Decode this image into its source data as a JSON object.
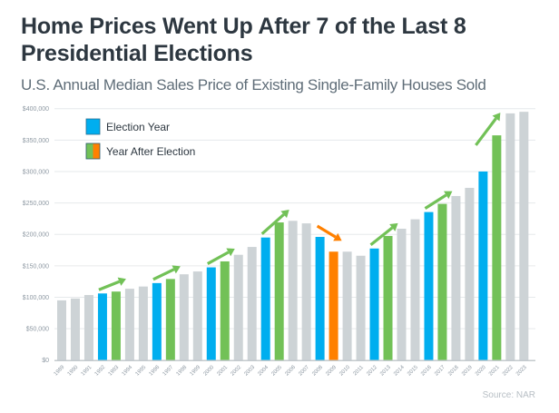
{
  "chart_data": {
    "type": "bar",
    "title": "Home Prices Went Up After 7 of the Last 8 Presidential Elections",
    "subtitle": "U.S. Annual Median Sales Price of Existing Single-Family Houses Sold",
    "xlabel": "",
    "ylabel": "",
    "ylim": [
      0,
      400000
    ],
    "y_ticks": [
      0,
      50000,
      100000,
      150000,
      200000,
      250000,
      300000,
      350000,
      400000
    ],
    "y_tick_labels": [
      "$0",
      "$50,000",
      "$100,000",
      "$150,000",
      "$200,000",
      "$250,000",
      "$300,000",
      "$350,000",
      "$400,000"
    ],
    "grid": true,
    "legend_position": "top-left",
    "categories": [
      "1989",
      "1990",
      "1991",
      "1992",
      "1993",
      "1994",
      "1995",
      "1996",
      "1997",
      "1998",
      "1999",
      "2000",
      "2001",
      "2002",
      "2003",
      "2004",
      "2005",
      "2006",
      "2007",
      "2008",
      "2009",
      "2010",
      "2011",
      "2012",
      "2013",
      "2014",
      "2015",
      "2016",
      "2017",
      "2018",
      "2019",
      "2020",
      "2021",
      "2022",
      "2023"
    ],
    "values": [
      95000,
      98000,
      103500,
      106000,
      109000,
      113500,
      117000,
      122500,
      129000,
      136500,
      141000,
      147500,
      157000,
      167500,
      180000,
      195000,
      219000,
      221500,
      217500,
      196000,
      172500,
      172500,
      166000,
      177500,
      197500,
      209000,
      224000,
      235500,
      248500,
      261000,
      274000,
      300000,
      357500,
      392500,
      395000
    ],
    "bar_kinds": [
      "other",
      "other",
      "other",
      "election",
      "after-up",
      "other",
      "other",
      "election",
      "after-up",
      "other",
      "other",
      "election",
      "after-up",
      "other",
      "other",
      "election",
      "after-up",
      "other",
      "other",
      "election",
      "after-down",
      "other",
      "other",
      "election",
      "after-up",
      "other",
      "other",
      "election",
      "after-up",
      "other",
      "other",
      "election",
      "after-up",
      "other",
      "other"
    ],
    "colors": {
      "other": "#cdd3d6",
      "election": "#00aeef",
      "after-up": "#72c157",
      "after-down": "#ff8000",
      "arrow-up": "#72c157",
      "arrow-down": "#ff8000"
    },
    "arrows": [
      {
        "from_year": "1992",
        "to_year": "1993",
        "direction": "up"
      },
      {
        "from_year": "1996",
        "to_year": "1997",
        "direction": "up"
      },
      {
        "from_year": "2000",
        "to_year": "2001",
        "direction": "up"
      },
      {
        "from_year": "2004",
        "to_year": "2005",
        "direction": "up"
      },
      {
        "from_year": "2008",
        "to_year": "2009",
        "direction": "down"
      },
      {
        "from_year": "2012",
        "to_year": "2013",
        "direction": "up"
      },
      {
        "from_year": "2016",
        "to_year": "2017",
        "direction": "up"
      },
      {
        "from_year": "2020",
        "to_year": "2021",
        "direction": "up"
      }
    ],
    "legend": [
      {
        "label": "Election Year",
        "colors": [
          "#00aeef"
        ]
      },
      {
        "label": "Year After Election",
        "colors": [
          "#72c157",
          "#ff8000"
        ]
      }
    ],
    "source": "Source: NAR"
  }
}
